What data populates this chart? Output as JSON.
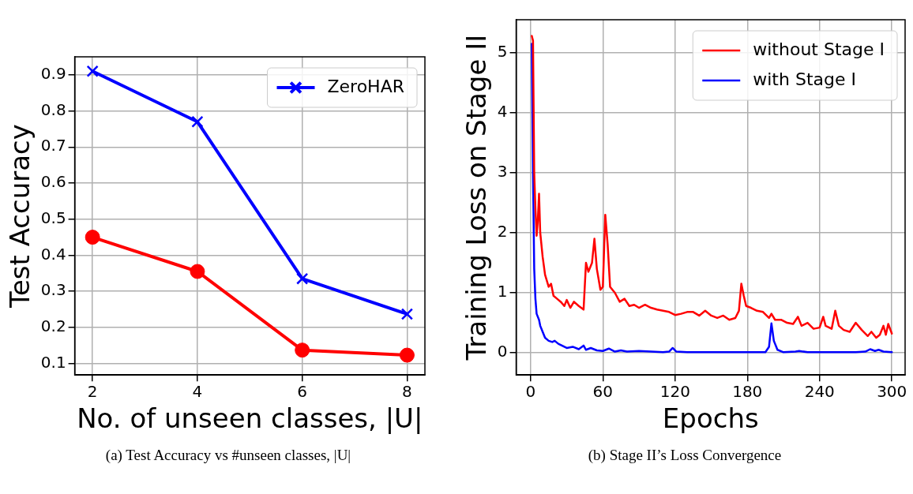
{
  "chart_data": [
    {
      "type": "line",
      "xlabel": "No. of unseen classes, |U|",
      "ylabel": "Test Accuracy",
      "x": [
        2,
        4,
        6,
        8
      ],
      "xlim": [
        1.66,
        8.34
      ],
      "ylim": [
        0.068,
        0.95
      ],
      "xticks": [
        2,
        4,
        6,
        8
      ],
      "yticks": [
        0.1,
        0.2,
        0.3,
        0.4,
        0.5,
        0.6,
        0.7,
        0.8,
        0.9
      ],
      "grid": true,
      "legend": "top right",
      "line_style": "solid",
      "series": [
        {
          "name": "ZeroHAR",
          "color": "#0000ff",
          "marker": "cross",
          "values": [
            0.91,
            0.77,
            0.335,
            0.237
          ]
        },
        {
          "color": "#ff0000",
          "marker": "circle",
          "values": [
            0.45,
            0.355,
            0.137,
            0.123
          ]
        }
      ],
      "annotations": [
        "(a) Test Accuracy vs #unseen classes, |U|"
      ]
    },
    {
      "type": "line",
      "xlabel": "Epochs",
      "ylabel": "Training Loss on Stage II",
      "xlim": [
        -12,
        311
      ],
      "ylim": [
        -0.37,
        5.55
      ],
      "xticks": [
        0,
        60,
        120,
        180,
        240,
        300
      ],
      "yticks": [
        0,
        1,
        2,
        3,
        4,
        5
      ],
      "grid": true,
      "legend": "top right",
      "marker": "none",
      "line_style": "solid",
      "series": [
        {
          "name": "without Stage I",
          "color": "#ff0000",
          "x": [
            1,
            2,
            3,
            4,
            5,
            6,
            7,
            8,
            10,
            12,
            15,
            17,
            19,
            22,
            25,
            28,
            30,
            33,
            36,
            40,
            44,
            46,
            48,
            51,
            53,
            55,
            58,
            60,
            62,
            64,
            66,
            70,
            74,
            78,
            82,
            86,
            90,
            95,
            100,
            105,
            110,
            115,
            120,
            125,
            130,
            135,
            140,
            145,
            150,
            155,
            160,
            165,
            170,
            173,
            175,
            177,
            179,
            183,
            188,
            193,
            198,
            200,
            203,
            208,
            213,
            218,
            222,
            225,
            230,
            235,
            240,
            243,
            245,
            250,
            253,
            256,
            260,
            265,
            270,
            275,
            280,
            283,
            287,
            290,
            293,
            295,
            297,
            300
          ],
          "values": [
            5.28,
            5.2,
            3.0,
            2.4,
            1.95,
            2.2,
            2.65,
            2.0,
            1.6,
            1.3,
            1.1,
            1.15,
            0.95,
            0.9,
            0.85,
            0.78,
            0.88,
            0.75,
            0.85,
            0.78,
            0.72,
            1.5,
            1.35,
            1.5,
            1.9,
            1.4,
            1.05,
            1.1,
            2.3,
            1.8,
            1.1,
            1.0,
            0.85,
            0.9,
            0.78,
            0.8,
            0.75,
            0.8,
            0.75,
            0.72,
            0.7,
            0.68,
            0.63,
            0.65,
            0.68,
            0.68,
            0.62,
            0.7,
            0.62,
            0.58,
            0.62,
            0.55,
            0.58,
            0.7,
            1.15,
            0.95,
            0.78,
            0.75,
            0.7,
            0.68,
            0.58,
            0.65,
            0.55,
            0.55,
            0.5,
            0.48,
            0.6,
            0.45,
            0.5,
            0.4,
            0.42,
            0.6,
            0.45,
            0.4,
            0.7,
            0.45,
            0.38,
            0.35,
            0.5,
            0.38,
            0.28,
            0.35,
            0.25,
            0.3,
            0.45,
            0.3,
            0.48,
            0.32
          ]
        },
        {
          "name": "with Stage I",
          "color": "#0000ff",
          "x": [
            1,
            2,
            3,
            4,
            5,
            7,
            8,
            10,
            12,
            15,
            18,
            20,
            23,
            26,
            30,
            35,
            40,
            44,
            46,
            50,
            55,
            60,
            65,
            70,
            75,
            80,
            90,
            100,
            110,
            115,
            118,
            121,
            130,
            150,
            170,
            195,
            198,
            200,
            202,
            205,
            210,
            220,
            223,
            230,
            250,
            270,
            278,
            282,
            286,
            289,
            293,
            300
          ],
          "values": [
            5.15,
            3.0,
            1.4,
            0.9,
            0.65,
            0.55,
            0.45,
            0.35,
            0.25,
            0.2,
            0.18,
            0.2,
            0.15,
            0.12,
            0.08,
            0.1,
            0.06,
            0.12,
            0.05,
            0.08,
            0.04,
            0.03,
            0.07,
            0.02,
            0.04,
            0.02,
            0.03,
            0.02,
            0.01,
            0.02,
            0.08,
            0.02,
            0.01,
            0.01,
            0.01,
            0.01,
            0.1,
            0.49,
            0.2,
            0.05,
            0.01,
            0.02,
            0.03,
            0.01,
            0.01,
            0.01,
            0.02,
            0.06,
            0.03,
            0.05,
            0.02,
            0.01
          ]
        }
      ],
      "annotations": [
        "(b) Stage II’s Loss Convergence"
      ]
    }
  ]
}
